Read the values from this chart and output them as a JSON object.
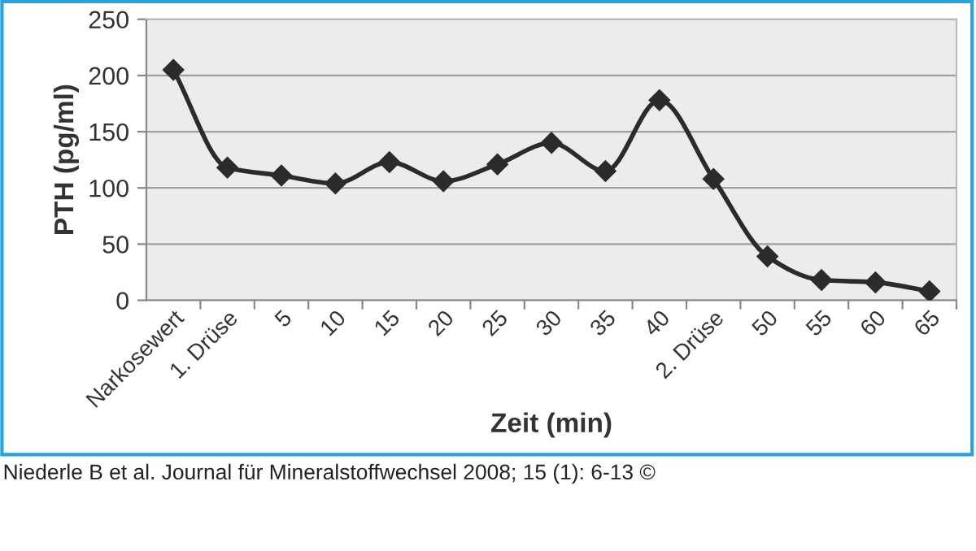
{
  "chart_data": {
    "type": "line",
    "ylabel": "PTH (pg/ml)",
    "xlabel": "Zeit (min)",
    "categories": [
      "Narkosewert",
      "1. Drüse",
      "5",
      "10",
      "15",
      "20",
      "25",
      "30",
      "35",
      "40",
      "2. Drüse",
      "50",
      "55",
      "60",
      "65"
    ],
    "series": [
      {
        "color": "#2b2b2b",
        "values": [
          205,
          118,
          111,
          104,
          123,
          106,
          121,
          140,
          115,
          178,
          108,
          39,
          18,
          16,
          8
        ]
      }
    ],
    "ylim": [
      0,
      250
    ],
    "yticks": [
      0,
      50,
      100,
      150,
      200,
      250
    ],
    "grid": "y",
    "marker": "diamond",
    "line_style": "solid",
    "legend": false,
    "annotations": [
      "Niederle B et al. Journal für Mineralstoffwechsel 2008; 15 (1): 6-13 ©"
    ]
  }
}
